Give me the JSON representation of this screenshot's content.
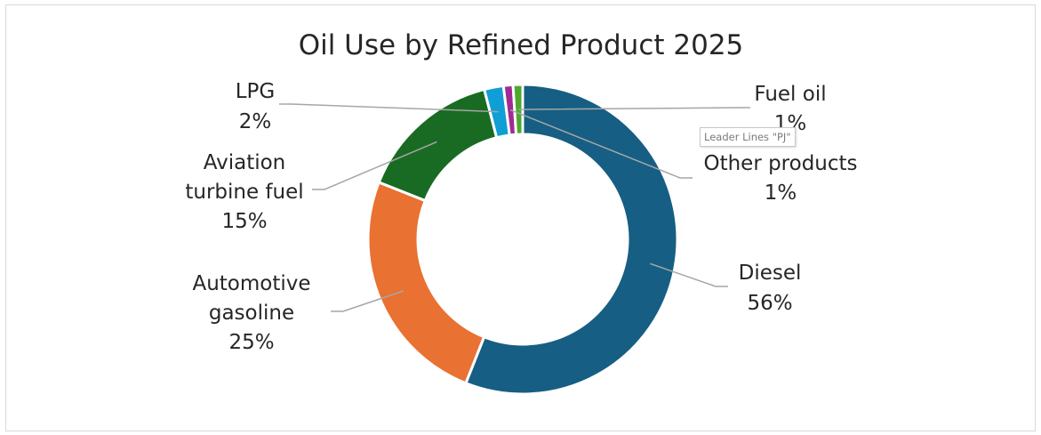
{
  "chart_data": {
    "type": "pie",
    "title": "Oil Use by Refined Product 2025",
    "categories": [
      "Diesel",
      "Automotive gasoline",
      "Aviation turbine fuel",
      "LPG",
      "Other products",
      "Fuel oil"
    ],
    "values": [
      56,
      25,
      15,
      2,
      1,
      1
    ],
    "labels": [
      "56%",
      "25%",
      "15%",
      "2%",
      "1%",
      "1%"
    ],
    "colors": [
      "#165e83",
      "#e97132",
      "#196b24",
      "#0f9ed5",
      "#a02b93",
      "#4ea72e"
    ],
    "legend": "none",
    "donut": true
  },
  "tooltip": "Leader Lines \"PJ\""
}
